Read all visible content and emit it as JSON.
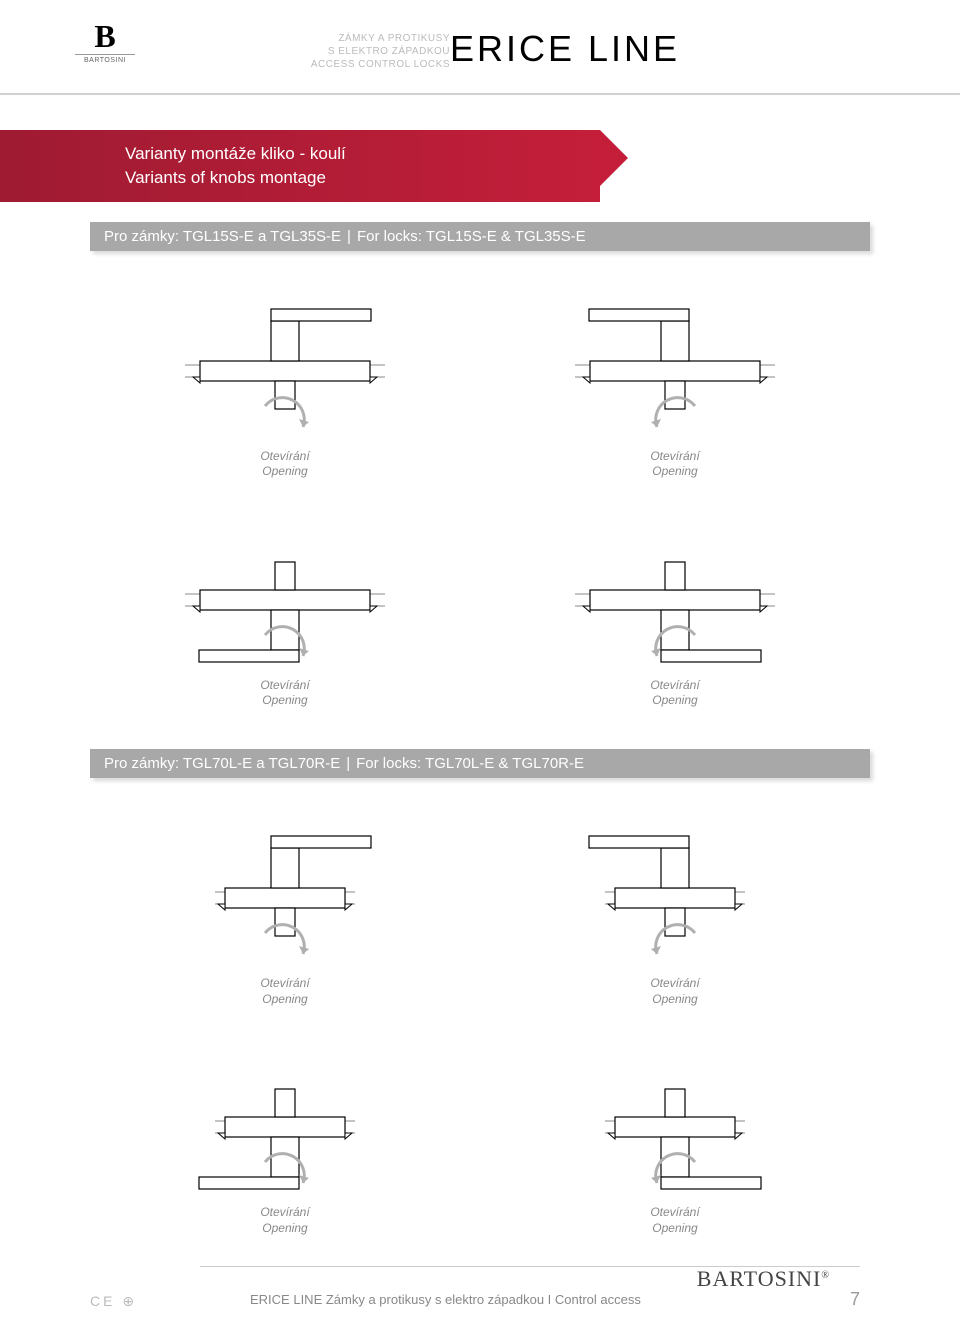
{
  "header": {
    "logo_letter": "B",
    "logo_brand": "BARTOSINI",
    "meta_line1": "ZÁMKY A PROTIKUSY",
    "meta_line2": "S ELEKTRO ZÁPADKOU",
    "meta_line3": "ACCESS CONTROL LOCKS",
    "product_line": "ERICE LINE",
    "accent_color": "#9e1b32"
  },
  "banner": {
    "line1": "Varianty montáže kliko - koulí",
    "line2": "Variants of knobs montage"
  },
  "sections": [
    {
      "bar_cz": "Pro zámky:  TGL15S-E a TGL35S-E",
      "bar_en": "For locks:  TGL15S-E & TGL35S-E",
      "diagrams": [
        {
          "handle": "up-right",
          "arrow": "cw",
          "label_cz": "Otevírání",
          "label_en": "Opening"
        },
        {
          "handle": "up-left",
          "arrow": "ccw",
          "label_cz": "Otevírání",
          "label_en": "Opening"
        },
        {
          "handle": "down-left",
          "arrow": "cw",
          "label_cz": "Otevírání",
          "label_en": "Opening"
        },
        {
          "handle": "down-right",
          "arrow": "ccw",
          "label_cz": "Otevírání",
          "label_en": "Opening"
        }
      ]
    },
    {
      "bar_cz": "Pro zámky: TGL70L-E a TGL70R-E",
      "bar_en": "For locks:  TGL70L-E & TGL70R-E",
      "diagrams": [
        {
          "handle": "up-right",
          "arrow": "cw",
          "short": true,
          "label_cz": "Otevírání",
          "label_en": "Opening"
        },
        {
          "handle": "up-left",
          "arrow": "ccw",
          "short": true,
          "label_cz": "Otevírání",
          "label_en": "Opening"
        },
        {
          "handle": "down-left",
          "arrow": "cw",
          "short": true,
          "label_cz": "Otevírání",
          "label_en": "Opening"
        },
        {
          "handle": "down-right",
          "arrow": "ccw",
          "short": true,
          "label_cz": "Otevírání",
          "label_en": "Opening"
        }
      ]
    }
  ],
  "footer": {
    "text": "ERICE LINE Zámky a protikusy s elektro západkou I Control access",
    "brand": "BARTOSINI",
    "ce": "CE ⊕",
    "page": "7"
  },
  "style": {
    "stroke": "#000000",
    "stroke_width": 1.2,
    "arrow_color": "#b0b0b0",
    "rail_color": "#888888"
  }
}
